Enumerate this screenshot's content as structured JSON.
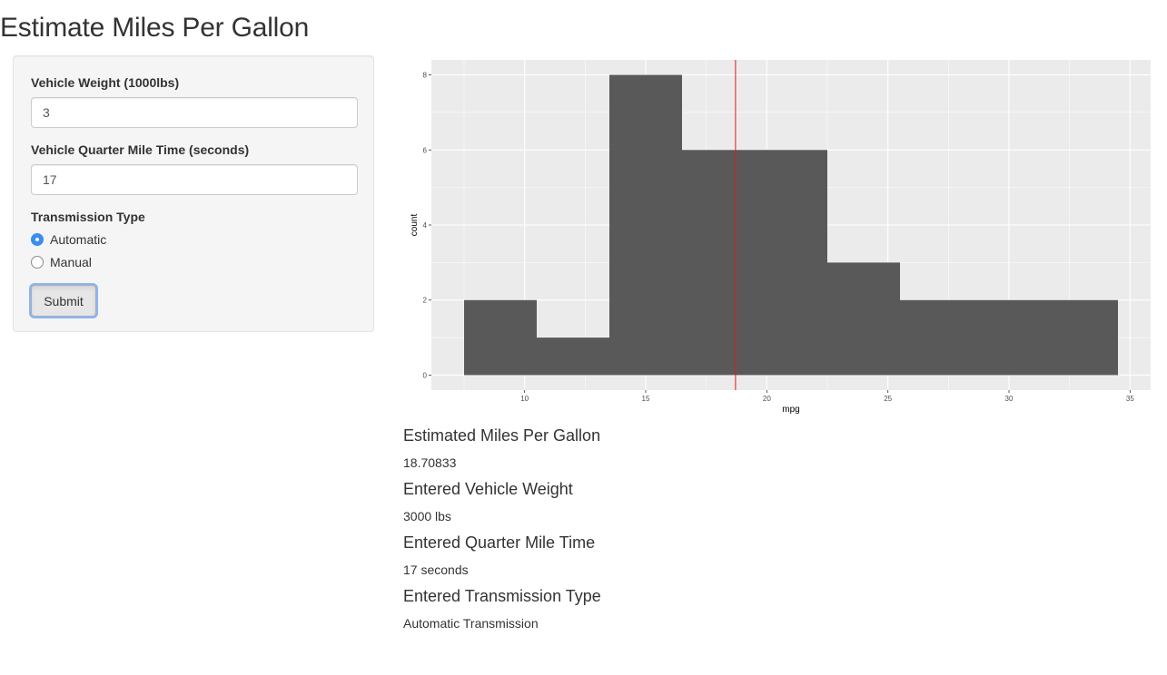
{
  "page": {
    "title": "Estimate Miles Per Gallon"
  },
  "inputs": {
    "weight": {
      "label": "Vehicle Weight (1000lbs)",
      "value": "3"
    },
    "qsec": {
      "label": "Vehicle Quarter Mile Time (seconds)",
      "value": "17"
    },
    "transmission": {
      "label": "Transmission Type",
      "options": [
        {
          "label": "Automatic",
          "selected": true
        },
        {
          "label": "Manual",
          "selected": false
        }
      ]
    },
    "submit_label": "Submit"
  },
  "outputs": [
    {
      "heading": "Estimated Miles Per Gallon",
      "value": "18.70833"
    },
    {
      "heading": "Entered Vehicle Weight",
      "value": "3000 lbs"
    },
    {
      "heading": "Entered Quarter Mile Time",
      "value": "17 seconds"
    },
    {
      "heading": "Entered Transmission Type",
      "value": "Automatic Transmission"
    }
  ],
  "colors": {
    "panel_bg": "#ebebeb",
    "grid": "#ffffff",
    "bar": "#595959",
    "vline": "#e4161b",
    "radio_selected": "#3b8ef0"
  },
  "chart_data": {
    "type": "bar",
    "title": "",
    "xlabel": "mpg",
    "ylabel": "count",
    "bins": [
      {
        "start": 7.5,
        "end": 10.5,
        "count": 2
      },
      {
        "start": 10.5,
        "end": 13.5,
        "count": 1
      },
      {
        "start": 13.5,
        "end": 16.5,
        "count": 8
      },
      {
        "start": 16.5,
        "end": 19.5,
        "count": 6
      },
      {
        "start": 19.5,
        "end": 22.5,
        "count": 6
      },
      {
        "start": 22.5,
        "end": 25.5,
        "count": 3
      },
      {
        "start": 25.5,
        "end": 28.5,
        "count": 2
      },
      {
        "start": 28.5,
        "end": 31.5,
        "count": 2
      },
      {
        "start": 31.5,
        "end": 34.5,
        "count": 2
      }
    ],
    "reference_line": {
      "x": 18.70833
    },
    "xlim": [
      6.15,
      35.85
    ],
    "ylim": [
      -0.4,
      8.4
    ],
    "xticks": [
      10,
      15,
      20,
      25,
      30,
      35
    ],
    "yticks": [
      0,
      2,
      4,
      6,
      8
    ],
    "grid": true,
    "legend": "none"
  }
}
